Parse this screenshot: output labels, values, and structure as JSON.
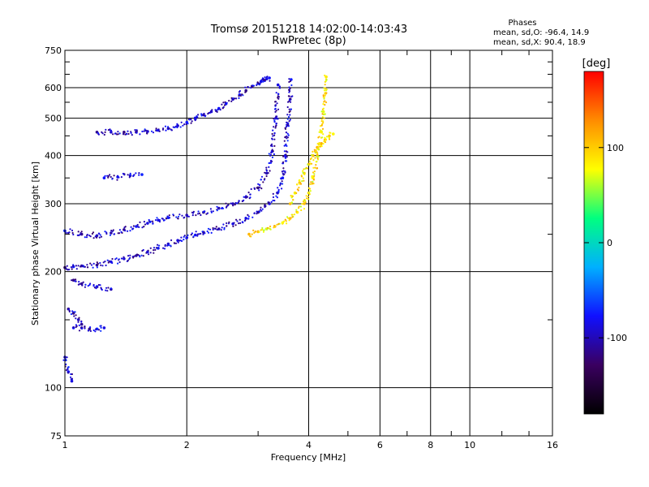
{
  "header": {
    "title": "Tromsø 20151218 14:02:00-14:03:43",
    "subtitle": "RwPretec (8p)",
    "stats_title": "Phases",
    "stats_o": "mean, sd,O: -96.4, 14.9",
    "stats_x": "mean, sd,X:  90.4, 18.9"
  },
  "chart_data": {
    "type": "scatter",
    "xlabel": "Frequency [MHz]",
    "ylabel": "Stationary phase Virtual Height [km]",
    "xscale": "log",
    "yscale": "log",
    "xlim": [
      1,
      16
    ],
    "ylim": [
      75,
      750
    ],
    "x_ticks": [
      1,
      2,
      4,
      6,
      8,
      10,
      16
    ],
    "y_ticks": [
      75,
      100,
      200,
      300,
      400,
      500,
      600,
      750
    ],
    "x_minor_ticks": [
      3,
      5,
      7,
      9,
      12,
      14
    ],
    "y_minor_ticks": [
      150,
      250,
      350,
      450,
      550,
      650,
      700
    ],
    "grid": true,
    "colorbar": {
      "label": "[deg]",
      "range": [
        -180,
        180
      ],
      "ticks": [
        100,
        0,
        -100
      ],
      "colors": [
        "#000000",
        "#3a0060",
        "#1010ff",
        "#00b0ff",
        "#00ff80",
        "#ffff00",
        "#ff8c00",
        "#ff0000"
      ]
    },
    "series": [
      {
        "name": "O",
        "approx_phase": -96,
        "segments": [
          {
            "x": [
              1.0,
              1.05,
              1.1,
              1.2,
              1.3,
              1.4,
              1.5,
              1.6,
              1.7,
              1.8,
              1.9,
              2.0,
              2.1,
              2.2,
              2.4,
              2.6,
              2.8,
              3.0,
              3.2,
              3.35,
              3.45,
              3.5,
              3.55,
              3.6,
              3.62
            ],
            "y": [
              205,
              206,
              207,
              208,
              212,
              216,
              220,
              225,
              230,
              236,
              241,
              245,
              249,
              253,
              258,
              266,
              275,
              285,
              300,
              320,
              350,
              400,
              480,
              560,
              630
            ]
          },
          {
            "x": [
              1.0,
              1.1,
              1.2,
              1.3,
              1.4,
              1.5,
              1.6,
              1.7,
              1.8,
              2.0,
              2.2,
              2.4,
              2.6,
              2.8,
              3.0,
              3.15,
              3.25,
              3.32,
              3.36
            ],
            "y": [
              255,
              250,
              248,
              252,
              257,
              262,
              267,
              272,
              276,
              280,
              285,
              292,
              300,
              312,
              330,
              360,
              410,
              500,
              610
            ]
          },
          {
            "x": [
              1.05,
              1.1,
              1.2,
              1.3
            ],
            "y": [
              190,
              186,
              183,
              180
            ]
          },
          {
            "x": [
              1.2,
              1.3,
              1.4,
              1.5,
              1.6,
              1.7,
              1.8,
              1.9,
              2.0,
              2.1,
              2.2,
              2.3,
              2.4,
              2.5,
              2.6,
              2.7,
              2.8,
              2.9,
              3.0,
              3.05,
              3.1,
              3.15,
              3.2
            ],
            "y": [
              460,
              460,
              460,
              460,
              462,
              465,
              470,
              478,
              488,
              498,
              510,
              520,
              530,
              545,
              560,
              575,
              590,
              605,
              615,
              622,
              628,
              632,
              636
            ]
          },
          {
            "x": [
              1.25,
              1.35,
              1.45,
              1.55
            ],
            "y": [
              350,
              352,
              355,
              357
            ]
          },
          {
            "x": [
              1.02,
              1.05,
              1.08,
              1.1
            ],
            "y": [
              160,
              156,
              150,
              146
            ]
          },
          {
            "x": [
              1.05,
              1.1,
              1.15,
              1.2,
              1.25
            ],
            "y": [
              143,
              143,
              142,
              142,
              143
            ]
          },
          {
            "x": [
              1.0,
              1.02,
              1.04
            ],
            "y": [
              120,
              110,
              104
            ]
          }
        ]
      },
      {
        "name": "X",
        "approx_phase": 90,
        "segments": [
          {
            "x": [
              2.85,
              3.0,
              3.15,
              3.3,
              3.45,
              3.6,
              3.75,
              3.9,
              4.0,
              4.1,
              4.2,
              4.3,
              4.35,
              4.4,
              4.42
            ],
            "y": [
              250,
              254,
              258,
              262,
              268,
              275,
              285,
              300,
              320,
              350,
              400,
              460,
              520,
              580,
              640
            ]
          },
          {
            "x": [
              3.6,
              3.7,
              3.8,
              3.9,
              4.0,
              4.1,
              4.2,
              4.3,
              4.4,
              4.5,
              4.6
            ],
            "y": [
              300,
              320,
              340,
              360,
              380,
              400,
              420,
              430,
              440,
              450,
              455
            ]
          }
        ]
      }
    ]
  }
}
